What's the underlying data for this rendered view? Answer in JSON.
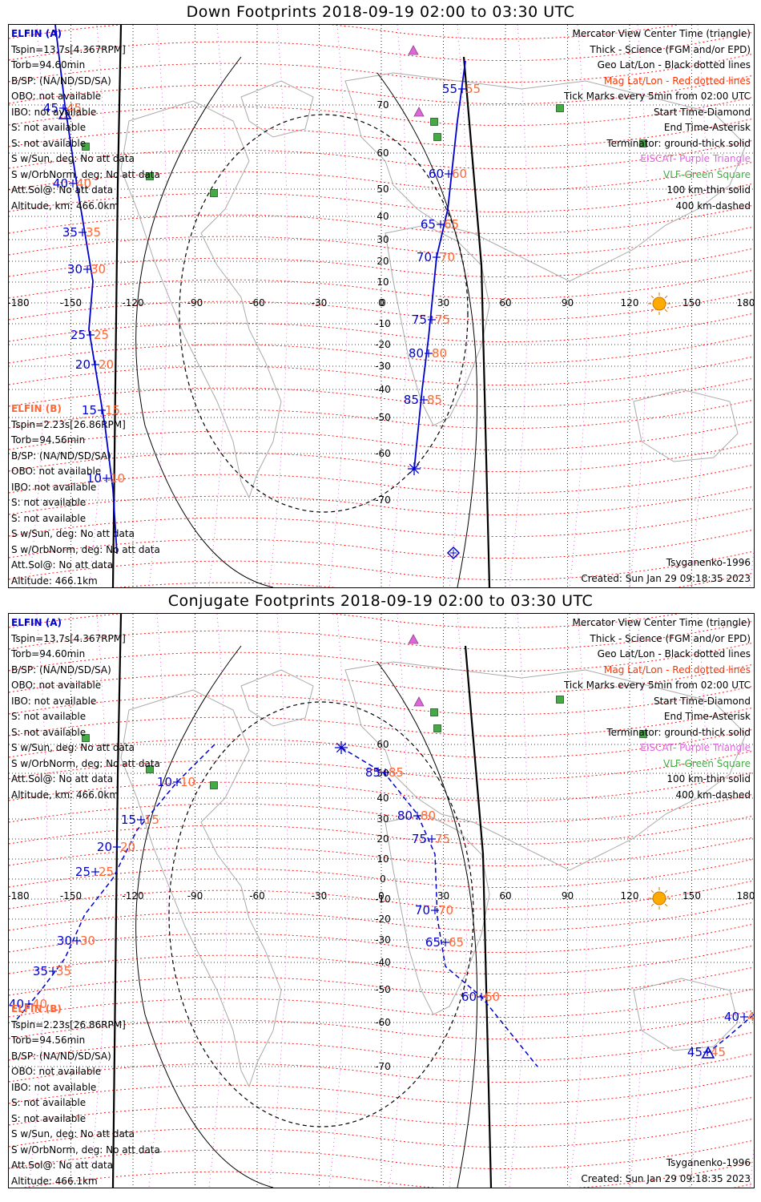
{
  "panels": [
    {
      "title": "Down Footprints 2018-09-19 02:00 to 03:30 UTC",
      "elfin_a": {
        "label": "ELFIN (A)",
        "lines": [
          "Tspin=13.7s[4.367RPM]",
          "Torb=94.60min",
          "B/SP: (NA/ND/SD/SA)",
          "OBO: not available",
          "IBO: not available",
          "S: not available",
          "S: not available",
          "S w/Sun, deg: No att data",
          "S w/OrbNorm, deg: No att data",
          "Att.Sol@: No att data",
          "Altitude, km: 466.0km"
        ]
      },
      "elfin_b": {
        "label": "ELFIN (B)",
        "lines": [
          "Tspin=2.23s[26.86RPM]",
          "Torb=94.56min",
          "B/SP: (NA/ND/SD/SA)",
          "OBO: not available",
          "IBO: not available",
          "S: not available",
          "S: not available",
          "S w/Sun, deg: No att data",
          "S w/OrbNorm, deg: No att data",
          "Att.Sol@: No att data",
          "Altitude: 466.1km"
        ]
      },
      "legend": [
        {
          "text": "Mercator View Center Time (triangle)",
          "color": "#000000"
        },
        {
          "text": "Thick - Science (FGM and/or EPD)",
          "color": "#000000"
        },
        {
          "text": "Geo Lat/Lon - Black dotted lines",
          "color": "#000000"
        },
        {
          "text": "Mag Lat/Lon - Red dotted lines",
          "color": "#ff3300"
        },
        {
          "text": "Tick Marks every 5min from 02:00 UTC",
          "color": "#000000"
        },
        {
          "text": "Start Time-Diamond",
          "color": "#000000"
        },
        {
          "text": "End Time-Asterisk",
          "color": "#000000"
        },
        {
          "text": "Terminator: ground-thick solid",
          "color": "#000000"
        },
        {
          "text": "EISCAT- Purple Triangle",
          "color": "#dd66dd"
        },
        {
          "text": "VLF-Green Square",
          "color": "#44aa44"
        },
        {
          "text": "100 km-thin solid",
          "color": "#000000"
        },
        {
          "text": "400 km-dashed",
          "color": "#000000"
        }
      ],
      "model": "Tsyganenko-1996",
      "created": "Created: Sun Jan 29 09:18:35 2023",
      "lon_labels": [
        "-180",
        "-150",
        "-120",
        "-90",
        "-60",
        "-30",
        "0",
        "30",
        "60",
        "90",
        "120",
        "150",
        "180"
      ],
      "lat_labels": [
        "70",
        "60",
        "50",
        "40",
        "30",
        "20",
        "10",
        "0",
        "-10",
        "-20",
        "-30",
        "-40",
        "-50",
        "-60",
        "-70"
      ],
      "track_a_ticks": [
        "45",
        "40",
        "35",
        "30",
        "25",
        "20",
        "15",
        "10"
      ],
      "track_b_ticks": [
        "55",
        "60",
        "65",
        "70",
        "75",
        "80",
        "85"
      ]
    },
    {
      "title": "Conjugate Footprints 2018-09-19 02:00 to 03:30 UTC",
      "elfin_a": {
        "label": "ELFIN (A)",
        "lines": [
          "Tspin=13.7s[4.367RPM]",
          "Torb=94.60min",
          "B/SP: (NA/ND/SD/SA)",
          "OBO: not available",
          "IBO: not available",
          "S: not available",
          "S: not available",
          "S w/Sun, deg: No att data",
          "S w/OrbNorm, deg: No att data",
          "Att.Sol@: No att data",
          "Altitude, km: 466.0km"
        ]
      },
      "elfin_b": {
        "label": "ELFIN (B)",
        "lines": [
          "Tspin=2.23s[26.86RPM]",
          "Torb=94.56min",
          "B/SP: (NA/ND/SD/SA)",
          "OBO: not available",
          "IBO: not available",
          "S: not available",
          "S: not available",
          "S w/Sun, deg: No att data",
          "S w/OrbNorm, deg: No att data",
          "Att.Sol@: No att data",
          "Altitude: 466.1km"
        ]
      },
      "legend": [
        {
          "text": "Mercator View Center Time (triangle)",
          "color": "#000000"
        },
        {
          "text": "Thick - Science (FGM and/or EPD)",
          "color": "#000000"
        },
        {
          "text": "Geo Lat/Lon - Black dotted lines",
          "color": "#000000"
        },
        {
          "text": "Mag Lat/Lon - Red dotted lines",
          "color": "#ff3300"
        },
        {
          "text": "Tick Marks every 5min from 02:00 UTC",
          "color": "#000000"
        },
        {
          "text": "Start Time-Diamond",
          "color": "#000000"
        },
        {
          "text": "End Time-Asterisk",
          "color": "#000000"
        },
        {
          "text": "Terminator: ground-thick solid",
          "color": "#000000"
        },
        {
          "text": "EISCAT- Purple Triangle",
          "color": "#dd66dd"
        },
        {
          "text": "VLF-Green Square",
          "color": "#44aa44"
        },
        {
          "text": "100 km-thin solid",
          "color": "#000000"
        },
        {
          "text": "400 km-dashed",
          "color": "#000000"
        }
      ],
      "model": "Tsyganenko-1996",
      "created": "Created: Sun Jan 29 09:18:35 2023",
      "lon_labels": [
        "-180",
        "-150",
        "-120",
        "-90",
        "-60",
        "-30",
        "0",
        "30",
        "60",
        "90",
        "120",
        "150",
        "180"
      ],
      "lat_labels": [
        "60",
        "50",
        "40",
        "30",
        "20",
        "10",
        "0",
        "-10",
        "-20",
        "-30",
        "-40",
        "-50",
        "-60",
        "-70"
      ],
      "track_a_ticks": [
        "10",
        "15",
        "20",
        "25",
        "30",
        "35",
        "40"
      ],
      "track_b_ticks": [
        "85",
        "80",
        "75",
        "70",
        "65",
        "60"
      ],
      "track_a_extra_ticks": [
        "40",
        "45"
      ]
    }
  ],
  "colors": {
    "track": "#0000cc",
    "tick_label_red": "#ff6633",
    "mag_grid": "#ff0000",
    "geo_grid": "#000000",
    "eiscat": "#dd66dd",
    "vlf": "#44aa44",
    "sun": "#ffaa00"
  }
}
